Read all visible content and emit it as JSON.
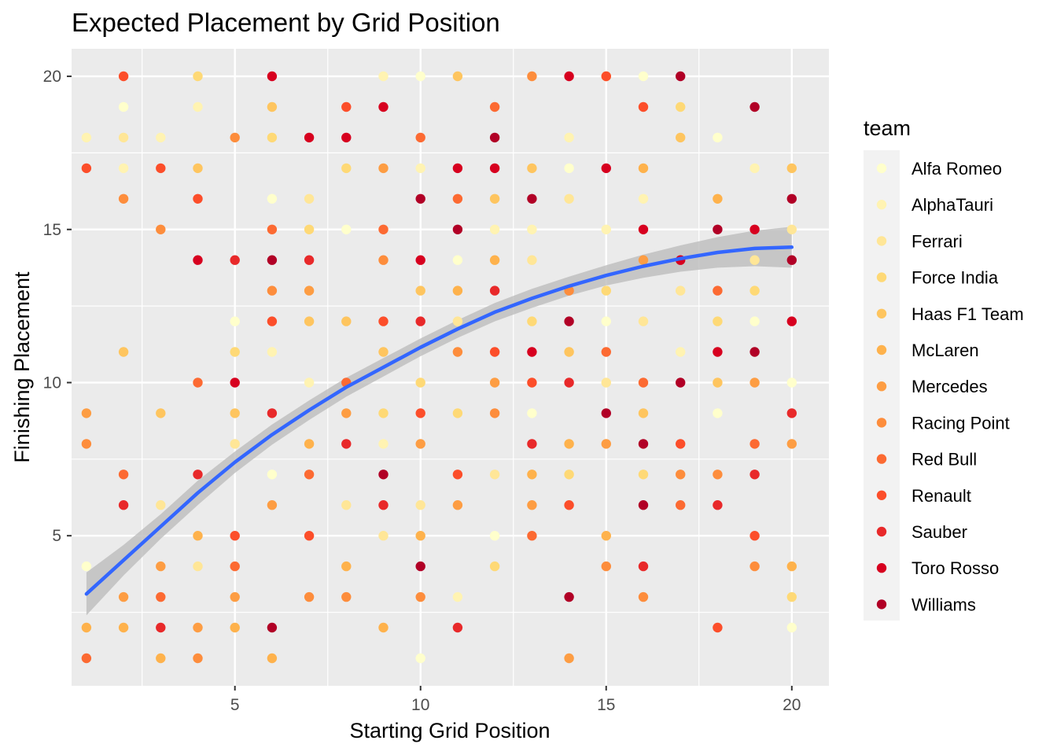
{
  "chart_data": {
    "type": "scatter",
    "title": "Expected Placement by Grid Position",
    "xlabel": "Starting Grid Position",
    "ylabel": "Finishing Placement",
    "xlim": [
      0.6,
      21.0
    ],
    "ylim": [
      0.1,
      20.9
    ],
    "x_ticks": [
      5,
      10,
      15,
      20
    ],
    "y_ticks": [
      5,
      10,
      15,
      20
    ],
    "panel_background": "#ebebeb",
    "grid": true,
    "legend_title": "team",
    "legend_position": "right",
    "teams": [
      {
        "name": "Alfa Romeo",
        "color": "#ffffcc"
      },
      {
        "name": "AlphaTauri",
        "color": "#fff3b2"
      },
      {
        "name": "Ferrari",
        "color": "#ffe697"
      },
      {
        "name": "Force India",
        "color": "#fed976"
      },
      {
        "name": "Haas F1 Team",
        "color": "#fec55f"
      },
      {
        "name": "McLaren",
        "color": "#feb24c"
      },
      {
        "name": "Mercedes",
        "color": "#fd9d43"
      },
      {
        "name": "Racing Point",
        "color": "#fd8d3c"
      },
      {
        "name": "Red Bull",
        "color": "#fc6a32"
      },
      {
        "name": "Renault",
        "color": "#fc4e2a"
      },
      {
        "name": "Sauber",
        "color": "#e8292a"
      },
      {
        "name": "Toro Rosso",
        "color": "#d7001f"
      },
      {
        "name": "Williams",
        "color": "#b10026"
      }
    ],
    "series": [
      {
        "name": "Alfa Romeo",
        "points": [
          [
            1,
            4
          ],
          [
            2,
            19
          ],
          [
            5,
            12
          ],
          [
            6,
            16
          ],
          [
            6,
            7
          ],
          [
            8,
            15
          ],
          [
            10,
            20
          ],
          [
            10,
            1
          ],
          [
            11,
            14
          ],
          [
            12,
            5
          ],
          [
            13,
            9
          ],
          [
            14,
            17
          ],
          [
            15,
            12
          ],
          [
            16,
            20
          ],
          [
            18,
            18
          ],
          [
            18,
            9
          ],
          [
            19,
            12
          ],
          [
            20,
            10
          ],
          [
            20,
            2
          ]
        ]
      },
      {
        "name": "AlphaTauri",
        "points": [
          [
            1,
            18
          ],
          [
            2,
            17
          ],
          [
            3,
            18
          ],
          [
            4,
            19
          ],
          [
            6,
            11
          ],
          [
            7,
            10
          ],
          [
            9,
            20
          ],
          [
            9,
            8
          ],
          [
            10,
            17
          ],
          [
            11,
            3
          ],
          [
            12,
            15
          ],
          [
            13,
            15
          ],
          [
            14,
            18
          ],
          [
            15,
            15
          ],
          [
            16,
            16
          ],
          [
            17,
            11
          ],
          [
            19,
            17
          ]
        ]
      },
      {
        "name": "Ferrari",
        "points": [
          [
            2,
            18
          ],
          [
            3,
            6
          ],
          [
            4,
            4
          ],
          [
            5,
            8
          ],
          [
            7,
            16
          ],
          [
            8,
            6
          ],
          [
            9,
            5
          ],
          [
            10,
            6
          ],
          [
            11,
            12
          ],
          [
            12,
            7
          ],
          [
            13,
            14
          ],
          [
            14,
            16
          ],
          [
            15,
            10
          ],
          [
            16,
            12
          ],
          [
            17,
            13
          ],
          [
            19,
            14
          ],
          [
            20,
            15
          ]
        ]
      },
      {
        "name": "Force India",
        "points": [
          [
            4,
            20
          ],
          [
            5,
            11
          ],
          [
            6,
            18
          ],
          [
            7,
            15
          ],
          [
            8,
            17
          ],
          [
            9,
            9
          ],
          [
            10,
            10
          ],
          [
            11,
            9
          ],
          [
            12,
            4
          ],
          [
            13,
            12
          ],
          [
            14,
            7
          ],
          [
            15,
            13
          ],
          [
            16,
            7
          ],
          [
            17,
            19
          ],
          [
            18,
            12
          ],
          [
            19,
            13
          ],
          [
            20,
            3
          ]
        ]
      },
      {
        "name": "Haas F1 Team",
        "points": [
          [
            2,
            11
          ],
          [
            3,
            9
          ],
          [
            4,
            17
          ],
          [
            5,
            9
          ],
          [
            6,
            19
          ],
          [
            7,
            12
          ],
          [
            8,
            12
          ],
          [
            9,
            11
          ],
          [
            10,
            13
          ],
          [
            11,
            20
          ],
          [
            12,
            16
          ],
          [
            13,
            17
          ],
          [
            14,
            11
          ],
          [
            15,
            20
          ],
          [
            16,
            9
          ],
          [
            17,
            18
          ],
          [
            18,
            10
          ],
          [
            20,
            17
          ]
        ]
      },
      {
        "name": "McLaren",
        "points": [
          [
            1,
            2
          ],
          [
            2,
            2
          ],
          [
            3,
            1
          ],
          [
            4,
            5
          ],
          [
            5,
            2
          ],
          [
            6,
            1
          ],
          [
            7,
            8
          ],
          [
            8,
            4
          ],
          [
            9,
            2
          ],
          [
            10,
            5
          ],
          [
            11,
            13
          ],
          [
            12,
            14
          ],
          [
            13,
            7
          ],
          [
            14,
            8
          ],
          [
            15,
            5
          ],
          [
            16,
            17
          ],
          [
            18,
            16
          ],
          [
            20,
            4
          ]
        ]
      },
      {
        "name": "Mercedes",
        "points": [
          [
            1,
            9
          ],
          [
            2,
            3
          ],
          [
            3,
            4
          ],
          [
            4,
            2
          ],
          [
            5,
            3
          ],
          [
            6,
            6
          ],
          [
            7,
            13
          ],
          [
            8,
            9
          ],
          [
            9,
            17
          ],
          [
            10,
            8
          ],
          [
            11,
            6
          ],
          [
            12,
            10
          ],
          [
            13,
            6
          ],
          [
            14,
            1
          ],
          [
            15,
            8
          ],
          [
            16,
            14
          ],
          [
            19,
            10
          ],
          [
            20,
            8
          ]
        ]
      },
      {
        "name": "Racing Point",
        "points": [
          [
            1,
            8
          ],
          [
            2,
            16
          ],
          [
            3,
            15
          ],
          [
            4,
            1
          ],
          [
            5,
            18
          ],
          [
            6,
            13
          ],
          [
            7,
            3
          ],
          [
            8,
            3
          ],
          [
            9,
            14
          ],
          [
            10,
            3
          ],
          [
            11,
            11
          ],
          [
            12,
            9
          ],
          [
            13,
            20
          ],
          [
            14,
            13
          ],
          [
            15,
            4
          ],
          [
            16,
            3
          ],
          [
            17,
            7
          ],
          [
            18,
            7
          ],
          [
            19,
            4
          ]
        ]
      },
      {
        "name": "Red Bull",
        "points": [
          [
            1,
            1
          ],
          [
            2,
            7
          ],
          [
            3,
            3
          ],
          [
            4,
            10
          ],
          [
            5,
            4
          ],
          [
            6,
            15
          ],
          [
            7,
            7
          ],
          [
            8,
            10
          ],
          [
            9,
            15
          ],
          [
            10,
            18
          ],
          [
            11,
            16
          ],
          [
            12,
            19
          ],
          [
            13,
            5
          ],
          [
            15,
            11
          ],
          [
            16,
            10
          ],
          [
            17,
            6
          ],
          [
            18,
            13
          ],
          [
            19,
            8
          ]
        ]
      },
      {
        "name": "Renault",
        "points": [
          [
            1,
            17
          ],
          [
            2,
            20
          ],
          [
            3,
            17
          ],
          [
            4,
            16
          ],
          [
            5,
            5
          ],
          [
            6,
            12
          ],
          [
            7,
            5
          ],
          [
            8,
            19
          ],
          [
            9,
            12
          ],
          [
            10,
            9
          ],
          [
            11,
            7
          ],
          [
            12,
            11
          ],
          [
            13,
            10
          ],
          [
            14,
            6
          ],
          [
            15,
            20
          ],
          [
            16,
            19
          ],
          [
            17,
            8
          ],
          [
            18,
            2
          ],
          [
            19,
            5
          ]
        ]
      },
      {
        "name": "Sauber",
        "points": [
          [
            2,
            6
          ],
          [
            3,
            2
          ],
          [
            4,
            7
          ],
          [
            5,
            14
          ],
          [
            6,
            9
          ],
          [
            7,
            14
          ],
          [
            8,
            8
          ],
          [
            9,
            6
          ],
          [
            10,
            12
          ],
          [
            11,
            2
          ],
          [
            12,
            13
          ],
          [
            13,
            8
          ],
          [
            14,
            10
          ],
          [
            16,
            4
          ],
          [
            18,
            6
          ],
          [
            19,
            7
          ],
          [
            20,
            9
          ]
        ]
      },
      {
        "name": "Toro Rosso",
        "points": [
          [
            4,
            14
          ],
          [
            5,
            10
          ],
          [
            6,
            20
          ],
          [
            7,
            18
          ],
          [
            8,
            18
          ],
          [
            9,
            19
          ],
          [
            10,
            14
          ],
          [
            11,
            17
          ],
          [
            12,
            17
          ],
          [
            13,
            11
          ],
          [
            14,
            20
          ],
          [
            15,
            17
          ],
          [
            16,
            15
          ],
          [
            17,
            14
          ],
          [
            18,
            11
          ],
          [
            19,
            15
          ],
          [
            20,
            12
          ]
        ]
      },
      {
        "name": "Williams",
        "points": [
          [
            6,
            14
          ],
          [
            6,
            2
          ],
          [
            9,
            7
          ],
          [
            10,
            16
          ],
          [
            10,
            4
          ],
          [
            11,
            15
          ],
          [
            12,
            18
          ],
          [
            13,
            16
          ],
          [
            14,
            12
          ],
          [
            14,
            3
          ],
          [
            15,
            9
          ],
          [
            16,
            8
          ],
          [
            16,
            6
          ],
          [
            17,
            20
          ],
          [
            17,
            10
          ],
          [
            18,
            15
          ],
          [
            19,
            19
          ],
          [
            19,
            11
          ],
          [
            20,
            16
          ],
          [
            20,
            14
          ]
        ]
      }
    ],
    "smooth_line": {
      "color": "#3366ff",
      "band_color": "#bdbdbd",
      "x": [
        1,
        2,
        3,
        4,
        5,
        6,
        7,
        8,
        9,
        10,
        11,
        12,
        13,
        14,
        15,
        16,
        17,
        18,
        19,
        20
      ],
      "y": [
        3.1,
        4.2,
        5.3,
        6.4,
        7.4,
        8.3,
        9.1,
        9.85,
        10.5,
        11.15,
        11.75,
        12.3,
        12.75,
        13.15,
        13.5,
        13.8,
        14.05,
        14.25,
        14.38,
        14.42
      ],
      "ymin": [
        2.4,
        3.7,
        4.9,
        6.0,
        7.05,
        7.97,
        8.78,
        9.54,
        10.2,
        10.86,
        11.46,
        12.0,
        12.44,
        12.84,
        13.17,
        13.42,
        13.62,
        13.75,
        13.8,
        13.75
      ],
      "ymax": [
        3.8,
        4.7,
        5.7,
        6.8,
        7.75,
        8.63,
        9.42,
        10.16,
        10.8,
        11.44,
        12.04,
        12.6,
        13.06,
        13.46,
        13.83,
        14.18,
        14.48,
        14.75,
        14.96,
        15.09
      ]
    }
  }
}
